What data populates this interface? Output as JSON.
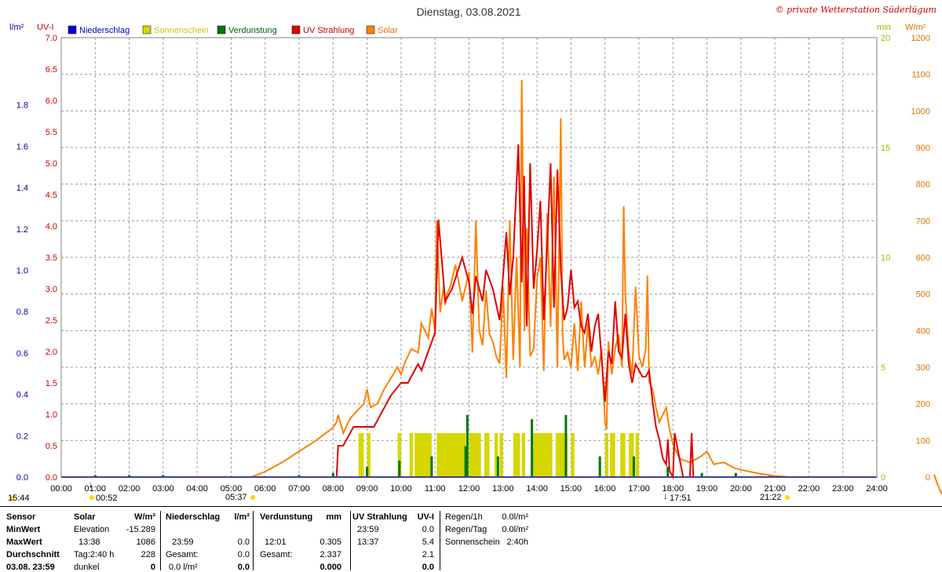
{
  "chart_data": {
    "type": "line",
    "title": "Dienstag, 03.08.2021",
    "copyright": "© private Wetterstation Süderlügum",
    "left_axis_label_1": "l/m²",
    "left_axis_label_2": "UV-I",
    "right_axis_label_1": "min",
    "right_axis_label_2": "W/m²",
    "legend": [
      {
        "name": "Niederschlag",
        "color": "#0000dd",
        "text_color": "#0000cc"
      },
      {
        "name": "Sonnenschein",
        "color": "#d6d600",
        "text_color": "#c8c800"
      },
      {
        "name": "Verdunstung",
        "color": "#007800",
        "text_color": "#006400"
      },
      {
        "name": "UV Strahlung",
        "color": "#e00000",
        "text_color": "#cc0000"
      },
      {
        "name": "Solar",
        "color": "#ff8000",
        "text_color": "#e07000"
      }
    ],
    "x_ticks": [
      "00:00",
      "01:00",
      "02:00",
      "03:00",
      "04:00",
      "05:00",
      "06:00",
      "07:00",
      "08:00",
      "09:00",
      "10:00",
      "11:00",
      "12:00",
      "13:00",
      "14:00",
      "15:00",
      "16:00",
      "17:00",
      "18:00",
      "19:00",
      "20:00",
      "21:00",
      "22:00",
      "23:00",
      "24:00"
    ],
    "y_precip_ticks": [
      "0.0",
      "0.2",
      "0.4",
      "0.6",
      "0.8",
      "1.0",
      "1.2",
      "1.4",
      "1.6",
      "1.8"
    ],
    "y_uv_ticks": [
      "0.0",
      "0.5",
      "1.0",
      "1.5",
      "2.0",
      "2.5",
      "3.0",
      "3.5",
      "4.0",
      "4.5",
      "5.0",
      "5.5",
      "6.0",
      "6.5",
      "7.0"
    ],
    "y_min_ticks": [
      "0",
      "5",
      "10",
      "15",
      "20"
    ],
    "y_solar_ticks": [
      "0",
      "100",
      "200",
      "300",
      "400",
      "500",
      "600",
      "700",
      "800",
      "900",
      "1000",
      "1100",
      "1200"
    ],
    "ylim_uv": [
      0,
      7
    ],
    "ylim_solar": [
      0,
      1200
    ],
    "ylim_min": [
      0,
      20
    ],
    "ylim_precip": [
      0,
      2
    ],
    "solar": {
      "name": "Solar",
      "x": [
        5.6,
        6.0,
        6.5,
        7.0,
        7.5,
        8.0,
        8.1,
        8.15,
        8.3,
        8.5,
        8.7,
        8.9,
        9.0,
        9.1,
        9.3,
        9.5,
        9.7,
        9.9,
        10.0,
        10.1,
        10.3,
        10.5,
        10.6,
        10.8,
        10.9,
        11.0,
        11.05,
        11.15,
        11.25,
        11.3,
        11.35,
        11.45,
        11.6,
        11.8,
        12.0,
        12.1,
        12.2,
        12.3,
        12.4,
        12.5,
        12.6,
        12.7,
        12.8,
        12.9,
        13.0,
        13.1,
        13.2,
        13.3,
        13.4,
        13.5,
        13.55,
        13.63,
        13.7,
        13.8,
        13.9,
        14.0,
        14.1,
        14.2,
        14.3,
        14.4,
        14.5,
        14.6,
        14.7,
        14.75,
        14.8,
        14.9,
        15.0,
        15.1,
        15.2,
        15.3,
        15.4,
        15.5,
        15.6,
        15.7,
        15.8,
        15.9,
        16.0,
        16.05,
        16.1,
        16.2,
        16.3,
        16.4,
        16.5,
        16.55,
        16.6,
        16.7,
        16.8,
        16.9,
        17.0,
        17.1,
        17.2,
        17.25,
        17.3,
        17.4,
        17.5,
        17.6,
        17.7,
        17.8,
        17.9,
        18.0,
        18.2,
        18.5,
        18.8,
        19.0,
        19.2,
        19.5,
        19.8,
        20.0,
        20.5,
        21.0,
        21.3,
        21.4
      ],
      "values": [
        0,
        15,
        40,
        70,
        100,
        135,
        150,
        170,
        120,
        160,
        180,
        200,
        240,
        190,
        200,
        240,
        270,
        300,
        280,
        310,
        350,
        340,
        420,
        380,
        460,
        400,
        700,
        450,
        520,
        470,
        500,
        520,
        580,
        480,
        560,
        340,
        700,
        400,
        360,
        510,
        390,
        370,
        330,
        310,
        520,
        270,
        700,
        320,
        600,
        300,
        1085,
        400,
        680,
        330,
        350,
        540,
        600,
        290,
        720,
        410,
        820,
        300,
        980,
        390,
        320,
        340,
        300,
        420,
        290,
        480,
        300,
        420,
        300,
        330,
        280,
        350,
        150,
        130,
        370,
        280,
        350,
        390,
        300,
        740,
        500,
        340,
        280,
        520,
        330,
        300,
        350,
        550,
        260,
        240,
        190,
        150,
        170,
        190,
        130,
        90,
        50,
        40,
        55,
        70,
        35,
        40,
        25,
        20,
        10,
        3,
        1,
        0
      ]
    },
    "uv": {
      "name": "UV Strahlung",
      "x": [
        8.0,
        8.1,
        8.15,
        8.3,
        8.6,
        9.0,
        9.2,
        9.5,
        9.7,
        10.0,
        10.2,
        10.5,
        10.6,
        10.8,
        11.0,
        11.05,
        11.1,
        11.3,
        11.5,
        11.8,
        12.0,
        12.1,
        12.2,
        12.4,
        12.5,
        12.7,
        12.9,
        13.1,
        13.2,
        13.3,
        13.45,
        13.55,
        13.62,
        13.7,
        13.8,
        13.9,
        14.0,
        14.1,
        14.2,
        14.3,
        14.4,
        14.5,
        14.6,
        14.7,
        14.8,
        14.9,
        15.0,
        15.1,
        15.2,
        15.3,
        15.4,
        15.5,
        15.6,
        15.7,
        15.8,
        15.9,
        16.0,
        16.1,
        16.2,
        16.3,
        16.4,
        16.5,
        16.6,
        16.7,
        16.8,
        16.9,
        17.0,
        17.1,
        17.2,
        17.3,
        17.4,
        17.5,
        17.6,
        17.7,
        17.8,
        17.85,
        17.9,
        18.0,
        18.05,
        18.3,
        18.5,
        18.55,
        18.6
      ],
      "values": [
        0,
        0,
        0.5,
        0.5,
        0.8,
        0.8,
        0.8,
        1.1,
        1.3,
        1.5,
        1.5,
        1.8,
        1.7,
        2.0,
        2.3,
        3.2,
        4.1,
        2.8,
        3.0,
        3.5,
        3.1,
        2.6,
        3.2,
        2.8,
        3.3,
        3.0,
        2.5,
        3.9,
        2.9,
        3.5,
        5.3,
        3.1,
        4.8,
        2.4,
        5.0,
        3.0,
        3.6,
        4.4,
        2.5,
        3.7,
        5.0,
        2.7,
        4.9,
        3.3,
        2.5,
        2.7,
        3.3,
        2.7,
        2.8,
        2.4,
        2.3,
        2.6,
        2.0,
        2.4,
        2.6,
        1.9,
        1.2,
        2.0,
        1.8,
        2.8,
        2.0,
        1.9,
        2.6,
        1.8,
        1.5,
        1.8,
        1.7,
        1.6,
        1.6,
        1.7,
        1.2,
        0.8,
        0.6,
        0.3,
        0.2,
        0.6,
        0.1,
        0,
        0.7,
        0,
        0,
        0.7,
        0
      ]
    },
    "sunshine_bars": [
      [
        8.75,
        8.9
      ],
      [
        9.0,
        9.1
      ],
      [
        9.9,
        10.0
      ],
      [
        10.25,
        10.35
      ],
      [
        10.4,
        10.9
      ],
      [
        11.05,
        11.9
      ],
      [
        12.0,
        12.35
      ],
      [
        12.45,
        12.6
      ],
      [
        12.75,
        12.85
      ],
      [
        12.9,
        13.0
      ],
      [
        13.3,
        13.5
      ],
      [
        13.55,
        13.65
      ],
      [
        13.85,
        14.45
      ],
      [
        14.55,
        14.9
      ],
      [
        15.0,
        15.1
      ],
      [
        16.0,
        16.1
      ],
      [
        16.15,
        16.3
      ],
      [
        16.45,
        16.6
      ],
      [
        16.7,
        16.85
      ],
      [
        16.9,
        17.0
      ]
    ],
    "sunshine_level_min": 2,
    "evaporation_spikes": [
      [
        1.0,
        0.01
      ],
      [
        2.0,
        0.01
      ],
      [
        3.0,
        0.01
      ],
      [
        7.0,
        0.01
      ],
      [
        8.0,
        0.02
      ],
      [
        9.0,
        0.05
      ],
      [
        9.95,
        0.08
      ],
      [
        10.9,
        0.1
      ],
      [
        11.9,
        0.15
      ],
      [
        11.95,
        0.3
      ],
      [
        12.85,
        0.1
      ],
      [
        13.85,
        0.28
      ],
      [
        14.85,
        0.3
      ],
      [
        15.85,
        0.1
      ],
      [
        16.85,
        0.1
      ],
      [
        17.85,
        0.05
      ],
      [
        18.85,
        0.02
      ],
      [
        19.85,
        0.02
      ],
      [
        20.85,
        0.01
      ]
    ],
    "time_markers": [
      {
        "label": "15:44",
        "type": "moonset"
      },
      {
        "label": "00:52",
        "type": "moonrise"
      },
      {
        "label": "05:37",
        "type": "sunrise"
      },
      {
        "label": "17:51",
        "type": "moon-culmination"
      },
      {
        "label": "21:22",
        "type": "sunset"
      }
    ]
  },
  "stats": {
    "sensor_col": {
      "h0": "Sensor",
      "r1": "MinWert",
      "r2": "MaxWert",
      "r3": "Durchschnitt",
      "r4": "03.08. 23:59"
    },
    "solar_col": {
      "h_a": "Solar",
      "h_b": "W/m²",
      "r1_a": "Elevation",
      "r1_b": "-15.289",
      "r2_a": "13:38",
      "r2_b": "1086",
      "r3_a": "Tag:2:40 h",
      "r3_b": "228",
      "r4_a": "dunkel",
      "r4_b": "0"
    },
    "precip_col": {
      "h_a": "Niederschlag",
      "h_b": "l/m²",
      "r2_a": "23:59",
      "r2_b": "0.0",
      "r3_a": "Gesamt:",
      "r3_b": "0.0",
      "r4_a": "0.0 l/m²",
      "r4_b": "0.0"
    },
    "evap_col": {
      "h_a": "Verdunstung",
      "h_b": "mm",
      "r2_a": "12:01",
      "r2_b": "0.305",
      "r3_a": "Gesamt:",
      "r3_b": "2.337",
      "r4_b": "0.000"
    },
    "uv_col": {
      "h_a": "UV Strahlung",
      "h_b": "UV-I",
      "r1_a": "23:59",
      "r1_b": "0.0",
      "r2_a": "13:37",
      "r2_b": "5.4",
      "r3_b": "2.1",
      "r4_b": "0.0"
    },
    "rain_col": {
      "r1_a": "Regen/1h",
      "r1_b": "0.0l/m²",
      "r2_a": "Regen/Tag",
      "r2_b": "0.0l/m²",
      "r3_a": "Sonnenschein",
      "r3_b": "2:40h"
    }
  }
}
